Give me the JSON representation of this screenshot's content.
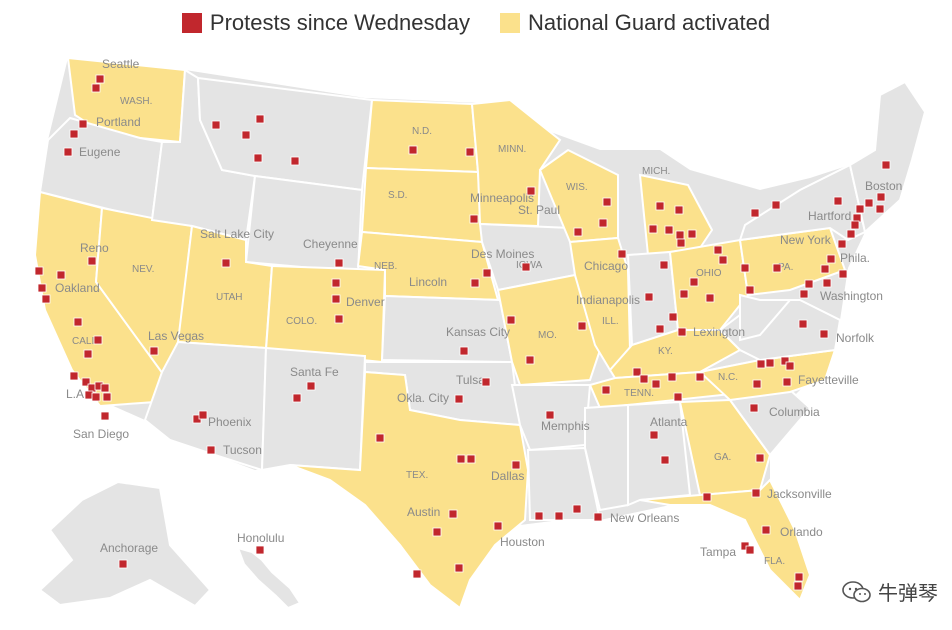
{
  "legend": {
    "protests_label": "Protests since Wednesday",
    "guard_label": "National Guard activated"
  },
  "colors": {
    "protest": "#c1272d",
    "guard": "#fbe18c",
    "state": "#e4e4e4",
    "label": "#8a8a8a"
  },
  "watermark": {
    "text": "牛弹琴",
    "icon": "wechat-icon"
  },
  "state_labels": [
    "WASH.",
    "N.D.",
    "MINN.",
    "S.D.",
    "WIS.",
    "MICH.",
    "NEB.",
    "NEV.",
    "UTAH",
    "COLO.",
    "CALIF.",
    "IOWA",
    "ILL.",
    "OHIO",
    "PA.",
    "MO.",
    "KY.",
    "TENN.",
    "N.C.",
    "TEX.",
    "GA.",
    "FLA."
  ],
  "city_labels": [
    "Seattle",
    "Portland",
    "Eugene",
    "Minneapolis",
    "St. Paul",
    "Boston",
    "Hartford",
    "Reno",
    "Salt Lake City",
    "Cheyenne",
    "Des Moines",
    "New York",
    "Chicago",
    "Phila.",
    "Oakland",
    "Denver",
    "Lincoln",
    "Indianapolis",
    "Washington",
    "Kansas City",
    "Lexington",
    "Las Vegas",
    "Norfolk",
    "Santa Fe",
    "Tulsa",
    "Fayetteville",
    "L.A.",
    "Okla. City",
    "Columbia",
    "Phoenix",
    "Memphis",
    "Atlanta",
    "San Diego",
    "Tucson",
    "Dallas",
    "Jacksonville",
    "Austin",
    "New Orleans",
    "Orlando",
    "Honolulu",
    "Houston",
    "Anchorage",
    "Tampa"
  ]
}
